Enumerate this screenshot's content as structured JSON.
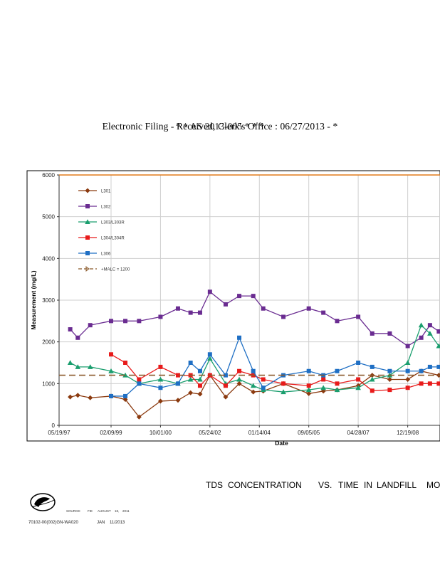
{
  "header": {
    "line1": "Electronic Filing - Received, Clerk's Office :  06/27/2013 - *",
    "line2": "* * AS 2013-005 * * *"
  },
  "chart_data": {
    "type": "line",
    "title": "",
    "xlabel": "Date",
    "ylabel": "Measurement (mg/L)",
    "ylim": [
      0,
      6000
    ],
    "yticks": [
      "0",
      "1000",
      "2000",
      "3000",
      "4000",
      "5000",
      "6000"
    ],
    "xlim": [
      "1997-05-19",
      "2010-01-15"
    ],
    "xticks": [
      {
        "label": "05/19/97",
        "date": "1997-05-19"
      },
      {
        "label": "02/09/99",
        "date": "1999-02-09"
      },
      {
        "label": "10/01/00",
        "date": "2000-10-01"
      },
      {
        "label": "05/24/02",
        "date": "2002-05-24"
      },
      {
        "label": "01/14/04",
        "date": "2004-01-14"
      },
      {
        "label": "09/05/05",
        "date": "2005-09-05"
      },
      {
        "label": "04/28/07",
        "date": "2007-04-28"
      },
      {
        "label": "12/19/08",
        "date": "2008-12-19"
      }
    ],
    "grid": true,
    "legend_position": "top-left",
    "series": [
      {
        "name": "L301",
        "color": "#8B3A0F",
        "marker": "diamond",
        "dash": false,
        "points": [
          [
            "1997-10-01",
            680
          ],
          [
            "1998-01-01",
            720
          ],
          [
            "1998-06-01",
            660
          ],
          [
            "1999-02-09",
            700
          ],
          [
            "1999-08-01",
            620
          ],
          [
            "2000-01-15",
            200
          ],
          [
            "2000-10-01",
            580
          ],
          [
            "2001-05-01",
            600
          ],
          [
            "2001-10-01",
            780
          ],
          [
            "2002-01-24",
            750
          ],
          [
            "2002-05-24",
            1200
          ],
          [
            "2002-12-01",
            680
          ],
          [
            "2003-05-15",
            1000
          ],
          [
            "2003-11-01",
            800
          ],
          [
            "2004-03-01",
            820
          ],
          [
            "2004-11-01",
            1000
          ],
          [
            "2005-09-05",
            760
          ],
          [
            "2006-03-01",
            820
          ],
          [
            "2006-08-15",
            850
          ],
          [
            "2007-04-28",
            950
          ],
          [
            "2007-10-15",
            1200
          ],
          [
            "2008-05-15",
            1100
          ],
          [
            "2008-12-19",
            1100
          ],
          [
            "2009-06-01",
            1300
          ],
          [
            "2010-01-01",
            1200
          ]
        ]
      },
      {
        "name": "L302",
        "color": "#6A2C91",
        "marker": "square",
        "dash": false,
        "points": [
          [
            "1997-10-01",
            2300
          ],
          [
            "1998-01-01",
            2100
          ],
          [
            "1998-06-01",
            2400
          ],
          [
            "1999-02-09",
            2500
          ],
          [
            "1999-08-01",
            2500
          ],
          [
            "2000-01-15",
            2500
          ],
          [
            "2000-10-01",
            2600
          ],
          [
            "2001-05-01",
            2800
          ],
          [
            "2001-10-01",
            2700
          ],
          [
            "2002-01-24",
            2700
          ],
          [
            "2002-05-24",
            3200
          ],
          [
            "2002-12-01",
            2900
          ],
          [
            "2003-05-15",
            3100
          ],
          [
            "2003-11-01",
            3100
          ],
          [
            "2004-03-01",
            2800
          ],
          [
            "2004-11-01",
            2600
          ],
          [
            "2005-09-05",
            2800
          ],
          [
            "2006-03-01",
            2700
          ],
          [
            "2006-08-15",
            2500
          ],
          [
            "2007-04-28",
            2600
          ],
          [
            "2007-10-15",
            2200
          ],
          [
            "2008-05-15",
            2200
          ],
          [
            "2008-12-19",
            1900
          ],
          [
            "2009-06-01",
            2100
          ],
          [
            "2009-09-15",
            2400
          ],
          [
            "2010-01-01",
            2250
          ]
        ]
      },
      {
        "name": "L303/L303R",
        "color": "#1A9E6E",
        "marker": "triangle",
        "dash": false,
        "points": [
          [
            "1997-10-01",
            1500
          ],
          [
            "1998-01-01",
            1400
          ],
          [
            "1998-06-01",
            1400
          ],
          [
            "1999-02-09",
            1300
          ],
          [
            "1999-08-01",
            1200
          ],
          [
            "2000-01-15",
            1000
          ],
          [
            "2000-10-01",
            1100
          ],
          [
            "2001-05-01",
            1000
          ],
          [
            "2001-10-01",
            1100
          ],
          [
            "2002-01-24",
            1100
          ],
          [
            "2002-05-24",
            1600
          ],
          [
            "2002-12-01",
            1000
          ],
          [
            "2003-05-15",
            1100
          ],
          [
            "2003-11-01",
            950
          ],
          [
            "2004-03-01",
            850
          ],
          [
            "2004-11-01",
            800
          ],
          [
            "2005-09-05",
            850
          ],
          [
            "2006-03-01",
            900
          ],
          [
            "2006-08-15",
            850
          ],
          [
            "2007-04-28",
            900
          ],
          [
            "2007-10-15",
            1100
          ],
          [
            "2008-05-15",
            1200
          ],
          [
            "2008-12-19",
            1500
          ],
          [
            "2009-06-01",
            2400
          ],
          [
            "2009-09-15",
            2200
          ],
          [
            "2010-01-01",
            1900
          ]
        ]
      },
      {
        "name": "L304/L304R",
        "color": "#E81B1B",
        "marker": "square",
        "dash": false,
        "points": [
          [
            "1999-02-09",
            1700
          ],
          [
            "1999-08-01",
            1500
          ],
          [
            "2000-01-15",
            1100
          ],
          [
            "2000-10-01",
            1400
          ],
          [
            "2001-05-01",
            1200
          ],
          [
            "2001-10-01",
            1200
          ],
          [
            "2002-01-24",
            950
          ],
          [
            "2002-05-24",
            1200
          ],
          [
            "2002-12-01",
            950
          ],
          [
            "2003-05-15",
            1300
          ],
          [
            "2003-11-01",
            1200
          ],
          [
            "2004-03-01",
            1100
          ],
          [
            "2004-11-01",
            1000
          ],
          [
            "2005-09-05",
            950
          ],
          [
            "2006-03-01",
            1100
          ],
          [
            "2006-08-15",
            1000
          ],
          [
            "2007-04-28",
            1100
          ],
          [
            "2007-10-15",
            830
          ],
          [
            "2008-05-15",
            850
          ],
          [
            "2008-12-19",
            900
          ],
          [
            "2009-06-01",
            1000
          ],
          [
            "2009-09-15",
            1000
          ],
          [
            "2010-01-01",
            1000
          ]
        ]
      },
      {
        "name": "L306",
        "color": "#1F6FC4",
        "marker": "square",
        "dash": false,
        "points": [
          [
            "1999-02-09",
            700
          ],
          [
            "1999-08-01",
            700
          ],
          [
            "2000-01-15",
            1000
          ],
          [
            "2000-10-01",
            900
          ],
          [
            "2001-05-01",
            1000
          ],
          [
            "2001-10-01",
            1500
          ],
          [
            "2002-01-24",
            1300
          ],
          [
            "2002-05-24",
            1700
          ],
          [
            "2002-12-01",
            1200
          ],
          [
            "2003-05-15",
            2100
          ],
          [
            "2003-11-01",
            1300
          ],
          [
            "2004-03-01",
            900
          ],
          [
            "2004-11-01",
            1200
          ],
          [
            "2005-09-05",
            1300
          ],
          [
            "2006-03-01",
            1200
          ],
          [
            "2006-08-15",
            1300
          ],
          [
            "2007-04-28",
            1500
          ],
          [
            "2007-10-15",
            1400
          ],
          [
            "2008-05-15",
            1300
          ],
          [
            "2008-12-19",
            1300
          ],
          [
            "2009-06-01",
            1300
          ],
          [
            "2009-09-15",
            1400
          ],
          [
            "2010-01-01",
            1400
          ]
        ]
      },
      {
        "name": "+MALC = 1200",
        "color": "#8B5A2B",
        "marker": "none",
        "dash": true,
        "points": [
          [
            "1997-05-19",
            1200
          ],
          [
            "2010-01-15",
            1200
          ]
        ]
      }
    ],
    "upper_line": {
      "value": 6000,
      "color": "#E07A1A"
    }
  },
  "caption": {
    "w1": "TDS",
    "w2": "CONCENTRATION",
    "w3": "VS.",
    "w4": "TIME",
    "w5": "IN",
    "w6": "LANDFILL",
    "w7": "MO"
  },
  "small_text": {
    "source": "SOURCE:",
    "ref": "FIE",
    "month": "AUGUST",
    "day": "18,",
    "year": "2011"
  },
  "footer": {
    "code": "70102-00(002)GN-WA020",
    "date_m": "JAN",
    "date_d": "11/2013"
  }
}
